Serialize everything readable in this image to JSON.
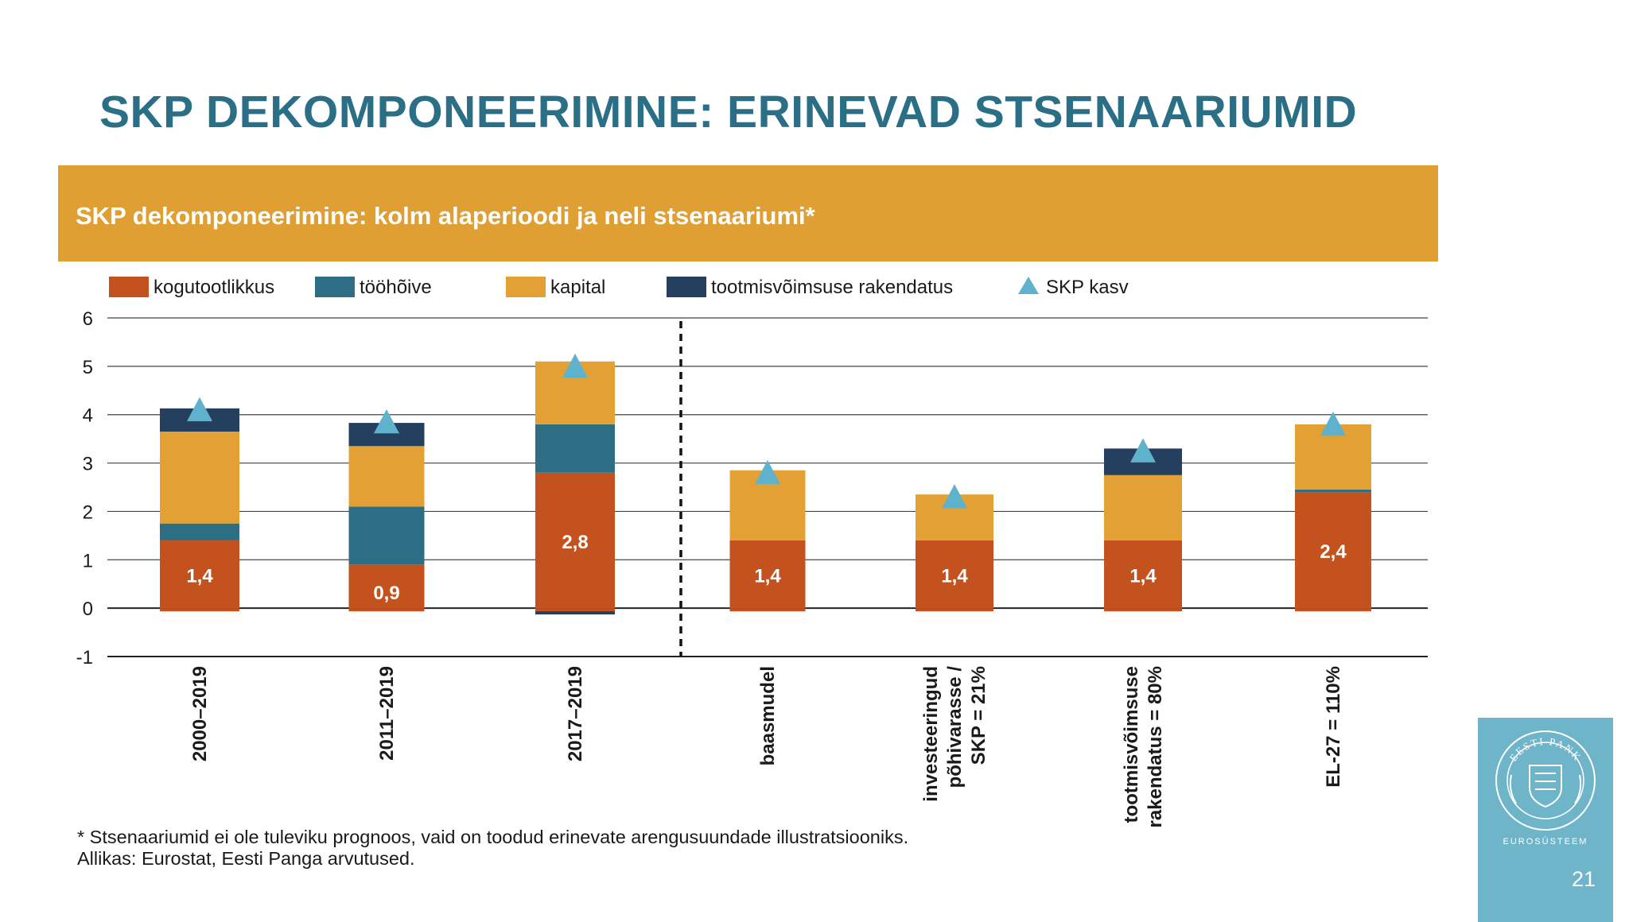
{
  "slide": {
    "title": "SKP DEKOMPONEERIMINE: ERINEVAD STSENAARIUMID",
    "banner_text": "SKP dekomponeerimine: kolm alaperioodi ja neli stsenaariumi*",
    "footnote_lines": [
      "* Stsenaariumid ei ole tuleviku prognoos, vaid on toodud erinevate arengusuundade illustratsiooniks.",
      "Allikas: Eurostat, Eesti Panga arvutused."
    ],
    "page_number": "21",
    "logo": {
      "text": "EUROSÜSTEEM",
      "seal_text": "EESTI PANK",
      "background": "#6fb5c9",
      "icon": "eesti-pank-seal-icon"
    }
  },
  "chart_data": {
    "type": "bar",
    "stacked": true,
    "title": "",
    "xlabel": "",
    "ylabel": "",
    "ylim": [
      -1,
      6
    ],
    "yticks": [
      -1,
      0,
      1,
      2,
      3,
      4,
      5,
      6
    ],
    "grid": true,
    "legend_position": "top",
    "categories": [
      [
        "2000–2019"
      ],
      [
        "2011–2019"
      ],
      [
        "2017–2019"
      ],
      [
        "baasmudel"
      ],
      [
        "investeeringud",
        "põhivarasse /",
        "SKP = 21%"
      ],
      [
        "tootmisvõimsuse",
        "rakendatus = 80%"
      ],
      [
        "EL-27 = 110%"
      ]
    ],
    "separator_after_index": 2,
    "series": [
      {
        "name": "kogutootlikkus",
        "color": "#c4521f",
        "values": [
          1.4,
          0.9,
          2.8,
          1.4,
          1.4,
          1.4,
          2.4
        ]
      },
      {
        "name": "tööhõive",
        "color": "#2d6e85",
        "values": [
          0.35,
          1.2,
          1.0,
          0.0,
          0.0,
          0.0,
          0.05
        ]
      },
      {
        "name": "kapital",
        "color": "#e3a135",
        "values": [
          1.9,
          1.25,
          1.3,
          1.45,
          0.95,
          1.35,
          1.35
        ]
      },
      {
        "name": "tootmisvõimsuse rakendatus",
        "color": "#25405f",
        "values": [
          0.48,
          0.48,
          -0.13,
          0.0,
          0.0,
          0.55,
          0.0
        ]
      }
    ],
    "marker_series": {
      "name": "SKP kasv",
      "color": "#5fb2cb",
      "values": [
        4.1,
        3.85,
        5.0,
        2.8,
        2.3,
        3.25,
        3.8
      ]
    },
    "data_labels": [
      "1,4",
      "0,9",
      "2,8",
      "1,4",
      "1,4",
      "1,4",
      "2,4"
    ]
  }
}
